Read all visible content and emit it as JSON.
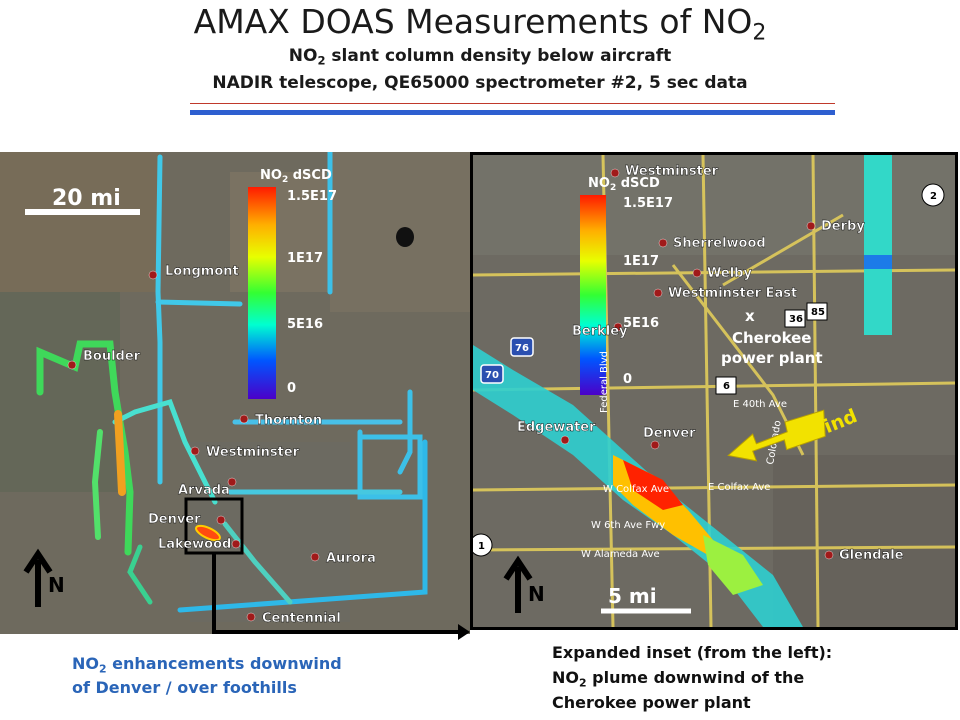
{
  "header": {
    "title_main": "AMAX DOAS Measurements of NO",
    "title_sub": "2",
    "subtitle1_pre": "NO",
    "subtitle1_sub": "2",
    "subtitle1_post": " slant column density below aircraft",
    "subtitle2": "NADIR telescope, QE65000 spectrometer #2, 5 sec data"
  },
  "left_map": {
    "scale_label": "20 mi",
    "north_label": "N",
    "colorbar": {
      "title_pre": "NO",
      "title_sub": "2",
      "title_post": " dSCD",
      "ticks": [
        "1.5E17",
        "1E17",
        "5E16",
        "0"
      ]
    },
    "places": [
      "Longmont",
      "Boulder",
      "Thornton",
      "Westminster",
      "Arvada",
      "Denver",
      "Lakewood",
      "Aurora",
      "Centennial"
    ]
  },
  "right_map": {
    "scale_label": "5 mi",
    "north_label": "N",
    "wind_label": "wind",
    "colorbar": {
      "title_pre": "NO",
      "title_sub": "2",
      "title_post": " dSCD",
      "ticks": [
        "1.5E17",
        "1E17",
        "5E16",
        "0"
      ]
    },
    "places": [
      "Westminster",
      "Sherrelwood",
      "Welby",
      "Westminster East",
      "Berkley",
      "Edgewater",
      "Denver",
      "Derby",
      "Glendale"
    ],
    "plant_marker": "x",
    "plant_line1": "Cherokee",
    "plant_line2": "power plant",
    "streets": [
      "W Colfax Ave",
      "E Colfax Ave",
      "W 6th Ave Fwy",
      "W Alameda Ave",
      "E 40th Ave",
      "Federal Blvd",
      "Colorado"
    ],
    "shields": [
      "76",
      "70",
      "36",
      "85",
      "6",
      "2",
      "1"
    ]
  },
  "captions": {
    "left_line1_pre": "NO",
    "left_line1_sub": "2",
    "left_line1_post": " enhancements downwind",
    "left_line2": "of Denver / over foothills",
    "right_line1": "Expanded inset (from the left):",
    "right_line2_pre": "NO",
    "right_line2_sub": "2",
    "right_line2_post": " plume downwind of the",
    "right_line3": "Cherokee power plant"
  },
  "colors": {
    "title_rule_red": "#c0392b",
    "title_rule_blue": "#2e5fd0",
    "caption_blue": "#2a65b8",
    "wind_arrow": "#f2e200",
    "connector": "#000000"
  }
}
